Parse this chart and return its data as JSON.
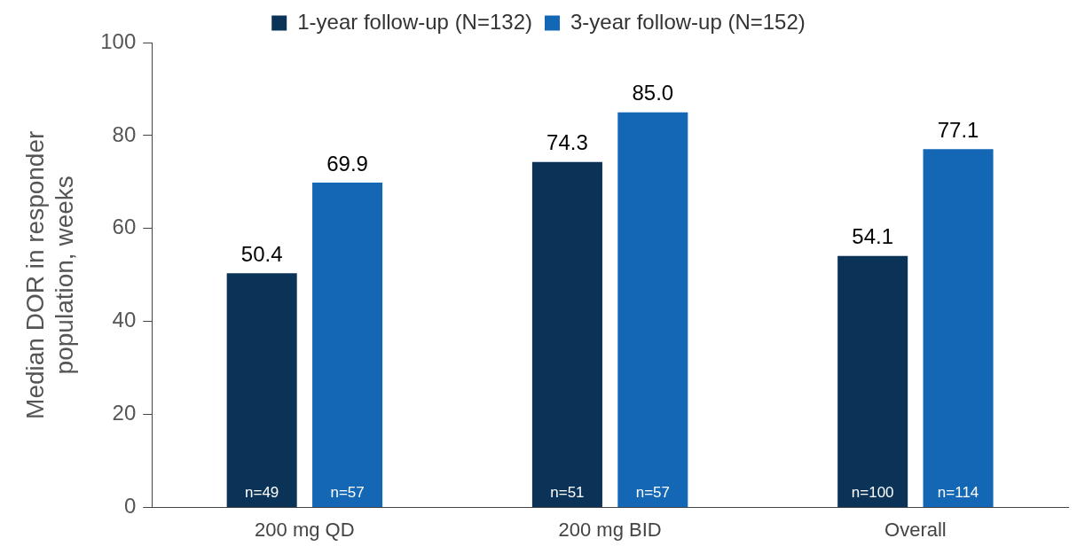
{
  "chart_data": {
    "type": "bar",
    "ylabel": "Median DOR in responder population, weeks",
    "categories": [
      "200 mg QD",
      "200 mg BID",
      "Overall"
    ],
    "series": [
      {
        "name": "1-year follow-up (N=132)",
        "color": "#0b3358",
        "values": [
          50.4,
          74.3,
          54.1
        ],
        "value_labels": [
          "50.4",
          "74.3",
          "54.1"
        ]
      },
      {
        "name": "3-year follow-up (N=152)",
        "color": "#1467b5",
        "values": [
          69.9,
          85.0,
          77.1
        ],
        "value_labels": [
          "69.9",
          "85.0",
          "77.1"
        ]
      }
    ],
    "ylim": [
      0,
      100
    ],
    "yticks": [
      0,
      20,
      40,
      60,
      80,
      100
    ],
    "grid": false,
    "legend": "top",
    "annotations": [
      "n=49",
      "n=57",
      "n=51",
      "n=57",
      "n=100",
      "n=114"
    ]
  }
}
